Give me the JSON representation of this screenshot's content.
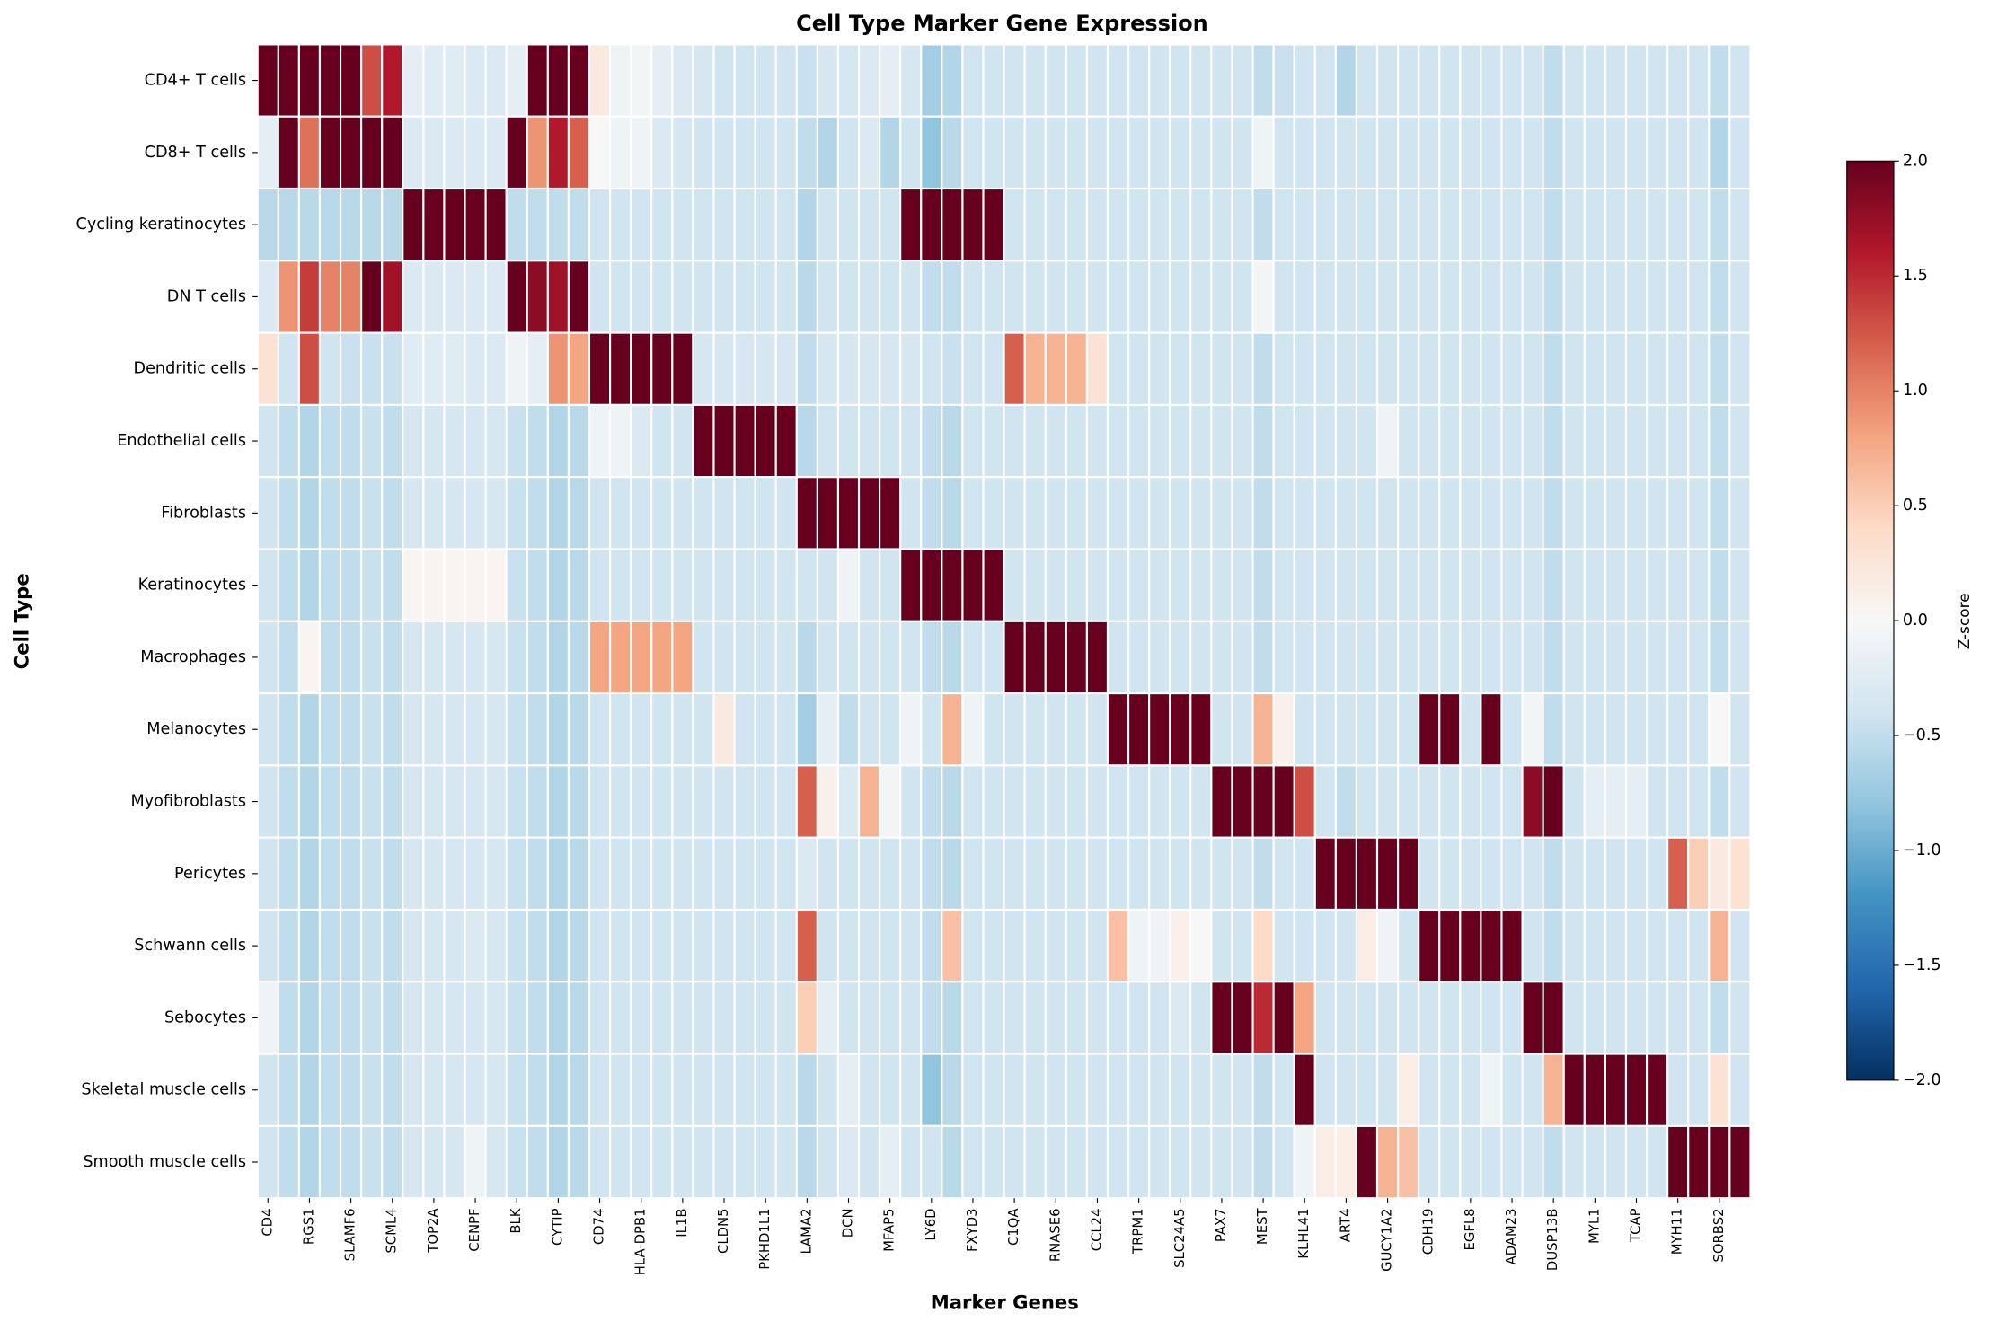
{
  "chart_data": {
    "type": "heatmap",
    "title": "Cell Type Marker Gene Expression",
    "xlabel": "Marker Genes",
    "ylabel": "Cell Type",
    "colorbar_label": "Z-score",
    "x": [
      "CD4",
      null,
      "RGS1",
      null,
      "SLAMF6",
      null,
      "SCML4",
      null,
      "TOP2A",
      null,
      "CENPF",
      null,
      "BLK",
      null,
      "CYTIP",
      null,
      "CD74",
      null,
      "HLA-DPB1",
      null,
      "IL1B",
      null,
      "CLDN5",
      null,
      "PKHD1L1",
      null,
      "LAMA2",
      null,
      "DCN",
      null,
      "MFAP5",
      null,
      "LY6D",
      null,
      "FXYD3",
      null,
      "C1QA",
      null,
      "RNASE6",
      null,
      "CCL24",
      null,
      "TRPM1",
      null,
      "SLC24A5",
      null,
      "PAX7",
      null,
      "MEST",
      null,
      "KLHL41",
      null,
      "ART4",
      null,
      "GUCY1A2",
      null,
      "CDH19",
      null,
      "EGFL8",
      null,
      "ADAM23",
      null,
      "DUSP13B",
      null,
      "MYL1",
      null,
      "TCAP",
      null,
      "MYH11",
      null,
      "SORBS2",
      null
    ],
    "y": [
      "CD4+ T cells",
      "CD8+ T cells",
      "Cycling keratinocytes",
      "DN T cells",
      "Dendritic cells",
      "Endothelial cells",
      "Fibroblasts",
      "Keratinocytes",
      "Macrophages",
      "Melanocytes",
      "Myofibroblasts",
      "Pericytes",
      "Schwann cells",
      "Sebocytes",
      "Skeletal muscle cells",
      "Smooth muscle cells"
    ],
    "values": [
      [
        2.5,
        2.5,
        2.5,
        2.5,
        2.5,
        1.3,
        1.6,
        -0.2,
        -0.25,
        -0.25,
        -0.3,
        -0.3,
        -0.2,
        2.5,
        2.5,
        2.5,
        0.2,
        -0.1,
        -0.05,
        -0.2,
        -0.3,
        -0.35,
        -0.4,
        -0.4,
        -0.4,
        -0.4,
        -0.45,
        -0.35,
        -0.35,
        -0.3,
        -0.2,
        -0.35,
        -0.7,
        -0.6,
        -0.4,
        -0.4,
        -0.4,
        -0.4,
        -0.4,
        -0.4,
        -0.4,
        -0.4,
        -0.4,
        -0.4,
        -0.4,
        -0.4,
        -0.4,
        -0.4,
        -0.5,
        -0.45,
        -0.4,
        -0.4,
        -0.6,
        -0.4,
        -0.4,
        -0.4,
        -0.4,
        -0.4,
        -0.4,
        -0.4,
        -0.4,
        -0.4,
        -0.5,
        -0.4,
        -0.4,
        -0.4,
        -0.4,
        -0.4,
        -0.4,
        -0.4,
        -0.5,
        -0.4
      ],
      [
        -0.2,
        2.5,
        1.1,
        2.5,
        2.5,
        2.5,
        2.5,
        -0.3,
        -0.3,
        -0.3,
        -0.3,
        -0.3,
        2.5,
        0.9,
        1.6,
        1.2,
        0.0,
        -0.1,
        -0.1,
        -0.3,
        -0.35,
        -0.4,
        -0.4,
        -0.4,
        -0.4,
        -0.4,
        -0.5,
        -0.6,
        -0.4,
        -0.3,
        -0.6,
        -0.4,
        -0.8,
        -0.55,
        -0.4,
        -0.4,
        -0.4,
        -0.4,
        -0.4,
        -0.4,
        -0.4,
        -0.4,
        -0.4,
        -0.4,
        -0.4,
        -0.4,
        -0.4,
        -0.4,
        -0.1,
        -0.4,
        -0.4,
        -0.4,
        -0.4,
        -0.4,
        -0.4,
        -0.4,
        -0.4,
        -0.4,
        -0.4,
        -0.4,
        -0.4,
        -0.4,
        -0.5,
        -0.4,
        -0.4,
        -0.4,
        -0.4,
        -0.4,
        -0.4,
        -0.4,
        -0.6,
        -0.4
      ],
      [
        -0.55,
        -0.55,
        -0.55,
        -0.55,
        -0.55,
        -0.55,
        -0.55,
        2.5,
        2.5,
        2.5,
        2.5,
        2.5,
        -0.5,
        -0.5,
        -0.5,
        -0.5,
        -0.4,
        -0.4,
        -0.4,
        -0.4,
        -0.4,
        -0.4,
        -0.4,
        -0.4,
        -0.4,
        -0.4,
        -0.6,
        -0.4,
        -0.4,
        -0.4,
        -0.4,
        2.5,
        2.5,
        2.5,
        2.5,
        2.5,
        -0.4,
        -0.4,
        -0.4,
        -0.4,
        -0.4,
        -0.4,
        -0.4,
        -0.4,
        -0.4,
        -0.4,
        -0.4,
        -0.4,
        -0.5,
        -0.4,
        -0.4,
        -0.4,
        -0.4,
        -0.4,
        -0.4,
        -0.4,
        -0.4,
        -0.4,
        -0.4,
        -0.4,
        -0.4,
        -0.4,
        -0.5,
        -0.4,
        -0.4,
        -0.4,
        -0.4,
        -0.4,
        -0.4,
        -0.4,
        -0.5,
        -0.4
      ],
      [
        -0.3,
        0.9,
        1.4,
        1.0,
        1.0,
        2.5,
        1.7,
        -0.3,
        -0.3,
        -0.3,
        -0.3,
        -0.3,
        2.5,
        1.8,
        1.7,
        2.5,
        -0.4,
        -0.4,
        -0.4,
        -0.4,
        -0.4,
        -0.4,
        -0.4,
        -0.4,
        -0.4,
        -0.4,
        -0.55,
        -0.4,
        -0.4,
        -0.4,
        -0.4,
        -0.4,
        -0.5,
        -0.5,
        -0.4,
        -0.4,
        -0.4,
        -0.4,
        -0.4,
        -0.4,
        -0.4,
        -0.4,
        -0.4,
        -0.4,
        -0.4,
        -0.4,
        -0.4,
        -0.4,
        -0.05,
        -0.4,
        -0.4,
        -0.4,
        -0.4,
        -0.4,
        -0.4,
        -0.4,
        -0.4,
        -0.4,
        -0.4,
        -0.4,
        -0.4,
        -0.4,
        -0.5,
        -0.4,
        -0.4,
        -0.4,
        -0.4,
        -0.4,
        -0.4,
        -0.4,
        -0.5,
        -0.4
      ],
      [
        0.3,
        -0.4,
        1.3,
        -0.4,
        -0.45,
        -0.45,
        -0.45,
        -0.25,
        -0.25,
        -0.25,
        -0.3,
        -0.3,
        -0.1,
        -0.2,
        0.9,
        0.8,
        2.5,
        2.5,
        2.5,
        2.5,
        2.5,
        -0.35,
        -0.35,
        -0.35,
        -0.35,
        -0.35,
        -0.5,
        -0.35,
        -0.35,
        -0.35,
        -0.35,
        -0.35,
        -0.4,
        -0.45,
        -0.4,
        -0.4,
        1.2,
        0.7,
        0.7,
        0.7,
        0.3,
        -0.4,
        -0.4,
        -0.4,
        -0.4,
        -0.4,
        -0.4,
        -0.4,
        -0.5,
        -0.4,
        -0.4,
        -0.4,
        -0.4,
        -0.4,
        -0.4,
        -0.4,
        -0.4,
        -0.4,
        -0.4,
        -0.4,
        -0.4,
        -0.4,
        -0.5,
        -0.4,
        -0.4,
        -0.4,
        -0.4,
        -0.4,
        -0.4,
        -0.4,
        -0.5,
        -0.4
      ],
      [
        -0.4,
        -0.5,
        -0.6,
        -0.5,
        -0.5,
        -0.45,
        -0.5,
        -0.35,
        -0.35,
        -0.35,
        -0.35,
        -0.35,
        -0.45,
        -0.5,
        -0.6,
        -0.55,
        -0.1,
        -0.1,
        -0.3,
        -0.4,
        -0.4,
        2.5,
        2.5,
        2.5,
        2.5,
        2.5,
        -0.55,
        -0.4,
        -0.4,
        -0.4,
        -0.4,
        -0.4,
        -0.5,
        -0.55,
        -0.4,
        -0.4,
        -0.4,
        -0.4,
        -0.4,
        -0.4,
        -0.4,
        -0.4,
        -0.4,
        -0.4,
        -0.4,
        -0.4,
        -0.4,
        -0.4,
        -0.5,
        -0.4,
        -0.4,
        -0.4,
        -0.4,
        -0.4,
        -0.1,
        -0.4,
        -0.4,
        -0.4,
        -0.4,
        -0.4,
        -0.4,
        -0.4,
        -0.5,
        -0.4,
        -0.4,
        -0.4,
        -0.4,
        -0.4,
        -0.4,
        -0.4,
        -0.5,
        -0.4
      ],
      [
        -0.4,
        -0.5,
        -0.6,
        -0.5,
        -0.5,
        -0.45,
        -0.5,
        -0.35,
        -0.35,
        -0.35,
        -0.35,
        -0.35,
        -0.45,
        -0.5,
        -0.6,
        -0.55,
        -0.4,
        -0.4,
        -0.4,
        -0.4,
        -0.4,
        -0.4,
        -0.4,
        -0.4,
        -0.4,
        -0.4,
        2.5,
        2.5,
        2.5,
        2.5,
        2.5,
        -0.4,
        -0.5,
        -0.55,
        -0.4,
        -0.4,
        -0.4,
        -0.4,
        -0.4,
        -0.4,
        -0.4,
        -0.4,
        -0.4,
        -0.4,
        -0.4,
        -0.4,
        -0.4,
        -0.4,
        -0.5,
        -0.4,
        -0.4,
        -0.4,
        -0.4,
        -0.4,
        -0.4,
        -0.4,
        -0.4,
        -0.4,
        -0.4,
        -0.4,
        -0.4,
        -0.4,
        -0.5,
        -0.4,
        -0.4,
        -0.4,
        -0.4,
        -0.4,
        -0.4,
        -0.4,
        -0.5,
        -0.4
      ],
      [
        -0.4,
        -0.5,
        -0.6,
        -0.5,
        -0.5,
        -0.45,
        -0.5,
        0.05,
        0.05,
        0.05,
        0.05,
        0.05,
        -0.45,
        -0.5,
        -0.6,
        -0.55,
        -0.4,
        -0.4,
        -0.4,
        -0.4,
        -0.4,
        -0.4,
        -0.4,
        -0.4,
        -0.4,
        -0.4,
        -0.4,
        -0.4,
        -0.1,
        -0.4,
        -0.4,
        2.5,
        2.5,
        2.5,
        2.5,
        2.5,
        -0.4,
        -0.4,
        -0.4,
        -0.4,
        -0.4,
        -0.4,
        -0.4,
        -0.4,
        -0.4,
        -0.4,
        -0.4,
        -0.4,
        -0.5,
        -0.4,
        -0.4,
        -0.4,
        -0.4,
        -0.4,
        -0.4,
        -0.4,
        -0.4,
        -0.4,
        -0.4,
        -0.4,
        -0.4,
        -0.4,
        -0.5,
        -0.4,
        -0.4,
        -0.4,
        -0.4,
        -0.4,
        -0.4,
        -0.4,
        -0.5,
        -0.4
      ],
      [
        -0.4,
        -0.5,
        0.05,
        -0.5,
        -0.5,
        -0.45,
        -0.5,
        -0.35,
        -0.35,
        -0.35,
        -0.35,
        -0.35,
        -0.45,
        -0.5,
        -0.6,
        -0.55,
        0.8,
        0.8,
        0.8,
        0.8,
        0.8,
        -0.4,
        -0.4,
        -0.4,
        -0.4,
        -0.4,
        -0.55,
        -0.4,
        -0.4,
        -0.4,
        -0.4,
        -0.4,
        -0.5,
        -0.55,
        -0.4,
        -0.4,
        2.5,
        2.5,
        2.5,
        2.5,
        2.5,
        -0.4,
        -0.4,
        -0.4,
        -0.4,
        -0.4,
        -0.4,
        -0.4,
        -0.5,
        -0.4,
        -0.4,
        -0.4,
        -0.4,
        -0.4,
        -0.4,
        -0.4,
        -0.4,
        -0.4,
        -0.4,
        -0.4,
        -0.4,
        -0.4,
        -0.5,
        -0.4,
        -0.4,
        -0.4,
        -0.4,
        -0.4,
        -0.4,
        -0.4,
        -0.5,
        -0.4
      ],
      [
        -0.4,
        -0.5,
        -0.6,
        -0.5,
        -0.5,
        -0.45,
        -0.5,
        -0.35,
        -0.35,
        -0.35,
        -0.35,
        -0.35,
        -0.45,
        -0.5,
        -0.6,
        -0.55,
        -0.4,
        -0.4,
        -0.4,
        -0.4,
        -0.4,
        -0.4,
        0.2,
        -0.4,
        -0.4,
        -0.4,
        -0.7,
        -0.2,
        -0.5,
        -0.4,
        -0.4,
        -0.1,
        -0.4,
        0.7,
        -0.1,
        -0.4,
        -0.4,
        -0.4,
        -0.4,
        -0.4,
        -0.4,
        2.5,
        2.5,
        2.5,
        2.5,
        2.5,
        -0.4,
        -0.4,
        0.7,
        0.1,
        -0.4,
        -0.4,
        -0.4,
        -0.4,
        -0.4,
        -0.4,
        2.5,
        2.5,
        -0.4,
        2.5,
        -0.4,
        -0.05,
        -0.5,
        -0.4,
        -0.4,
        -0.4,
        -0.4,
        -0.4,
        -0.4,
        -0.4,
        0.0,
        -0.4
      ],
      [
        -0.4,
        -0.5,
        -0.6,
        -0.5,
        -0.5,
        -0.45,
        -0.5,
        -0.35,
        -0.35,
        -0.35,
        -0.35,
        -0.35,
        -0.45,
        -0.5,
        -0.6,
        -0.55,
        -0.4,
        -0.4,
        -0.4,
        -0.4,
        -0.4,
        -0.4,
        -0.4,
        -0.4,
        -0.4,
        -0.4,
        1.2,
        0.1,
        -0.3,
        0.7,
        -0.05,
        -0.4,
        -0.5,
        -0.55,
        -0.4,
        -0.4,
        -0.4,
        -0.4,
        -0.4,
        -0.4,
        -0.4,
        -0.4,
        -0.4,
        -0.4,
        -0.4,
        -0.4,
        2.5,
        2.5,
        2.5,
        2.5,
        1.3,
        -0.4,
        -0.5,
        -0.4,
        -0.4,
        -0.4,
        -0.4,
        -0.4,
        -0.4,
        -0.4,
        -0.4,
        1.8,
        2.5,
        -0.4,
        -0.2,
        -0.2,
        -0.2,
        -0.4,
        -0.4,
        -0.4,
        -0.5,
        -0.4
      ],
      [
        -0.4,
        -0.5,
        -0.6,
        -0.5,
        -0.5,
        -0.45,
        -0.5,
        -0.35,
        -0.35,
        -0.35,
        -0.35,
        -0.35,
        -0.45,
        -0.5,
        -0.6,
        -0.55,
        -0.4,
        -0.4,
        -0.4,
        -0.4,
        -0.4,
        -0.4,
        -0.4,
        -0.4,
        -0.4,
        -0.4,
        -0.3,
        -0.4,
        -0.4,
        -0.4,
        -0.4,
        -0.4,
        -0.5,
        -0.55,
        -0.4,
        -0.4,
        -0.4,
        -0.4,
        -0.4,
        -0.4,
        -0.4,
        -0.4,
        -0.4,
        -0.4,
        -0.4,
        -0.4,
        -0.4,
        -0.4,
        -0.5,
        -0.4,
        -0.4,
        2.5,
        2.5,
        2.5,
        2.5,
        2.5,
        -0.4,
        -0.4,
        -0.4,
        -0.4,
        -0.4,
        -0.4,
        -0.5,
        -0.4,
        -0.4,
        -0.4,
        -0.4,
        -0.4,
        1.2,
        0.5,
        0.2,
        0.3
      ],
      [
        -0.4,
        -0.5,
        -0.6,
        -0.5,
        -0.5,
        -0.45,
        -0.5,
        -0.35,
        -0.35,
        -0.35,
        -0.3,
        -0.35,
        -0.45,
        -0.5,
        -0.6,
        -0.55,
        -0.4,
        -0.4,
        -0.4,
        -0.4,
        -0.4,
        -0.4,
        -0.4,
        -0.4,
        -0.4,
        -0.4,
        1.2,
        -0.4,
        -0.4,
        -0.4,
        -0.4,
        -0.4,
        -0.5,
        0.6,
        -0.4,
        -0.4,
        -0.4,
        -0.4,
        -0.4,
        -0.4,
        -0.4,
        0.6,
        -0.1,
        -0.1,
        0.1,
        0.0,
        -0.4,
        -0.4,
        0.4,
        -0.4,
        -0.4,
        -0.4,
        -0.4,
        0.15,
        -0.1,
        -0.4,
        2.5,
        2.5,
        2.5,
        2.5,
        2.5,
        -0.4,
        -0.5,
        -0.4,
        -0.4,
        -0.4,
        -0.4,
        -0.4,
        -0.4,
        -0.4,
        0.7,
        -0.4
      ],
      [
        -0.1,
        -0.5,
        -0.6,
        -0.5,
        -0.5,
        -0.45,
        -0.5,
        -0.35,
        -0.35,
        -0.35,
        -0.35,
        -0.35,
        -0.45,
        -0.5,
        -0.6,
        -0.55,
        -0.4,
        -0.4,
        -0.4,
        -0.4,
        -0.4,
        -0.4,
        -0.4,
        -0.4,
        -0.4,
        -0.4,
        0.5,
        -0.2,
        -0.4,
        -0.4,
        -0.4,
        -0.4,
        -0.5,
        -0.55,
        -0.4,
        -0.4,
        -0.4,
        -0.4,
        -0.4,
        -0.4,
        -0.4,
        -0.4,
        -0.4,
        -0.4,
        -0.3,
        -0.4,
        2.5,
        2.5,
        1.5,
        2.5,
        0.8,
        -0.4,
        -0.4,
        -0.4,
        -0.4,
        -0.4,
        -0.4,
        -0.4,
        -0.4,
        -0.4,
        -0.4,
        2.5,
        2.5,
        -0.4,
        -0.4,
        -0.4,
        -0.4,
        -0.4,
        -0.4,
        -0.4,
        -0.5,
        -0.4
      ],
      [
        -0.4,
        -0.5,
        -0.6,
        -0.5,
        -0.5,
        -0.45,
        -0.5,
        -0.35,
        -0.35,
        -0.35,
        -0.35,
        -0.35,
        -0.45,
        -0.5,
        -0.6,
        -0.55,
        -0.4,
        -0.4,
        -0.4,
        -0.4,
        -0.4,
        -0.4,
        -0.4,
        -0.4,
        -0.4,
        -0.4,
        -0.55,
        -0.4,
        -0.2,
        -0.4,
        -0.4,
        -0.4,
        -0.8,
        -0.55,
        -0.4,
        -0.4,
        -0.4,
        -0.4,
        -0.4,
        -0.4,
        -0.4,
        -0.4,
        -0.4,
        -0.4,
        -0.4,
        -0.4,
        -0.4,
        -0.4,
        -0.5,
        -0.4,
        2.5,
        -0.4,
        -0.4,
        -0.4,
        -0.4,
        0.15,
        -0.4,
        -0.4,
        -0.4,
        -0.1,
        -0.4,
        -0.4,
        0.7,
        2.5,
        2.5,
        2.5,
        2.5,
        2.5,
        -0.4,
        -0.4,
        0.3,
        -0.4
      ],
      [
        -0.4,
        -0.5,
        -0.6,
        -0.5,
        -0.5,
        -0.45,
        -0.5,
        -0.35,
        -0.35,
        -0.35,
        -0.1,
        -0.35,
        -0.45,
        -0.5,
        -0.6,
        -0.55,
        -0.4,
        -0.4,
        -0.4,
        -0.4,
        -0.4,
        -0.4,
        -0.4,
        -0.4,
        -0.4,
        -0.4,
        -0.55,
        -0.4,
        -0.3,
        -0.4,
        -0.2,
        -0.4,
        -0.4,
        -0.55,
        -0.4,
        -0.4,
        -0.4,
        -0.4,
        -0.4,
        -0.4,
        -0.4,
        -0.4,
        -0.4,
        -0.4,
        -0.4,
        -0.4,
        -0.4,
        -0.4,
        -0.5,
        -0.4,
        -0.1,
        0.15,
        0.15,
        2.5,
        0.7,
        0.6,
        -0.4,
        -0.4,
        -0.4,
        -0.4,
        -0.4,
        -0.4,
        -0.5,
        -0.4,
        -0.4,
        -0.4,
        -0.4,
        -0.4,
        2.5,
        2.5,
        2.5,
        2.5
      ]
    ],
    "clim": [
      -2,
      2
    ],
    "cticks": [
      {
        "value": -2,
        "label": "−2.0"
      },
      {
        "value": -1.5,
        "label": "−1.5"
      },
      {
        "value": -1,
        "label": "−1.0"
      },
      {
        "value": -0.5,
        "label": "−0.5"
      },
      {
        "value": 0,
        "label": "0.0"
      },
      {
        "value": 0.5,
        "label": "0.5"
      },
      {
        "value": 1,
        "label": "1.0"
      },
      {
        "value": 1.5,
        "label": "1.5"
      },
      {
        "value": 2,
        "label": "2.0"
      }
    ],
    "colormap": [
      "#053061",
      "#2166ac",
      "#4393c3",
      "#92c5de",
      "#d1e5f0",
      "#f7f7f7",
      "#fddbc7",
      "#f4a582",
      "#d6604d",
      "#b2182b",
      "#67001f"
    ]
  }
}
